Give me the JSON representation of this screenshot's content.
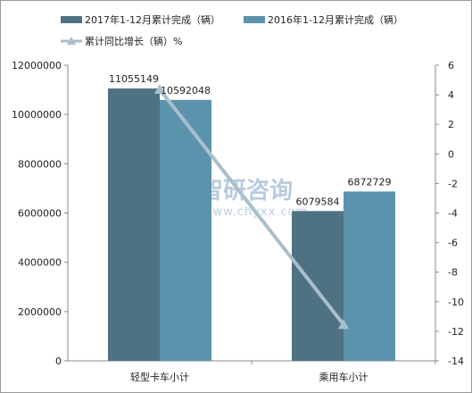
{
  "chart_data": {
    "type": "bar",
    "categories": [
      "轻型卡车小计",
      "乘用车小计"
    ],
    "series": [
      {
        "name": "2017年1-12月累计完成（辆）",
        "values": [
          11055149,
          6079584
        ],
        "color": "#4f7283",
        "axis": "left"
      },
      {
        "name": "2016年1-12月累计完成（辆）",
        "values": [
          10592048,
          6872729
        ],
        "color": "#5b93ad",
        "axis": "left"
      }
    ],
    "line_series": {
      "name": "累计同比增长（辆）%",
      "values": [
        4.37,
        -11.54
      ],
      "color": "#a9bfcc",
      "axis": "right"
    },
    "y_left": {
      "ylim": [
        0,
        12000000
      ],
      "ticks": [
        "0",
        "2000000",
        "4000000",
        "6000000",
        "8000000",
        "10000000",
        "12000000"
      ]
    },
    "y_right": {
      "ylim": [
        -14,
        6
      ],
      "ticks": [
        "6",
        "4",
        "2",
        "0",
        "-2",
        "-4",
        "-6",
        "-8",
        "-10",
        "-12",
        "-14"
      ]
    },
    "data_labels": [
      "11055149",
      "10592048",
      "6079584",
      "6872729"
    ],
    "legend_position": "top-left",
    "grid": false
  },
  "watermark": {
    "brand": "智研咨询",
    "url": "www.chyxx.com"
  }
}
